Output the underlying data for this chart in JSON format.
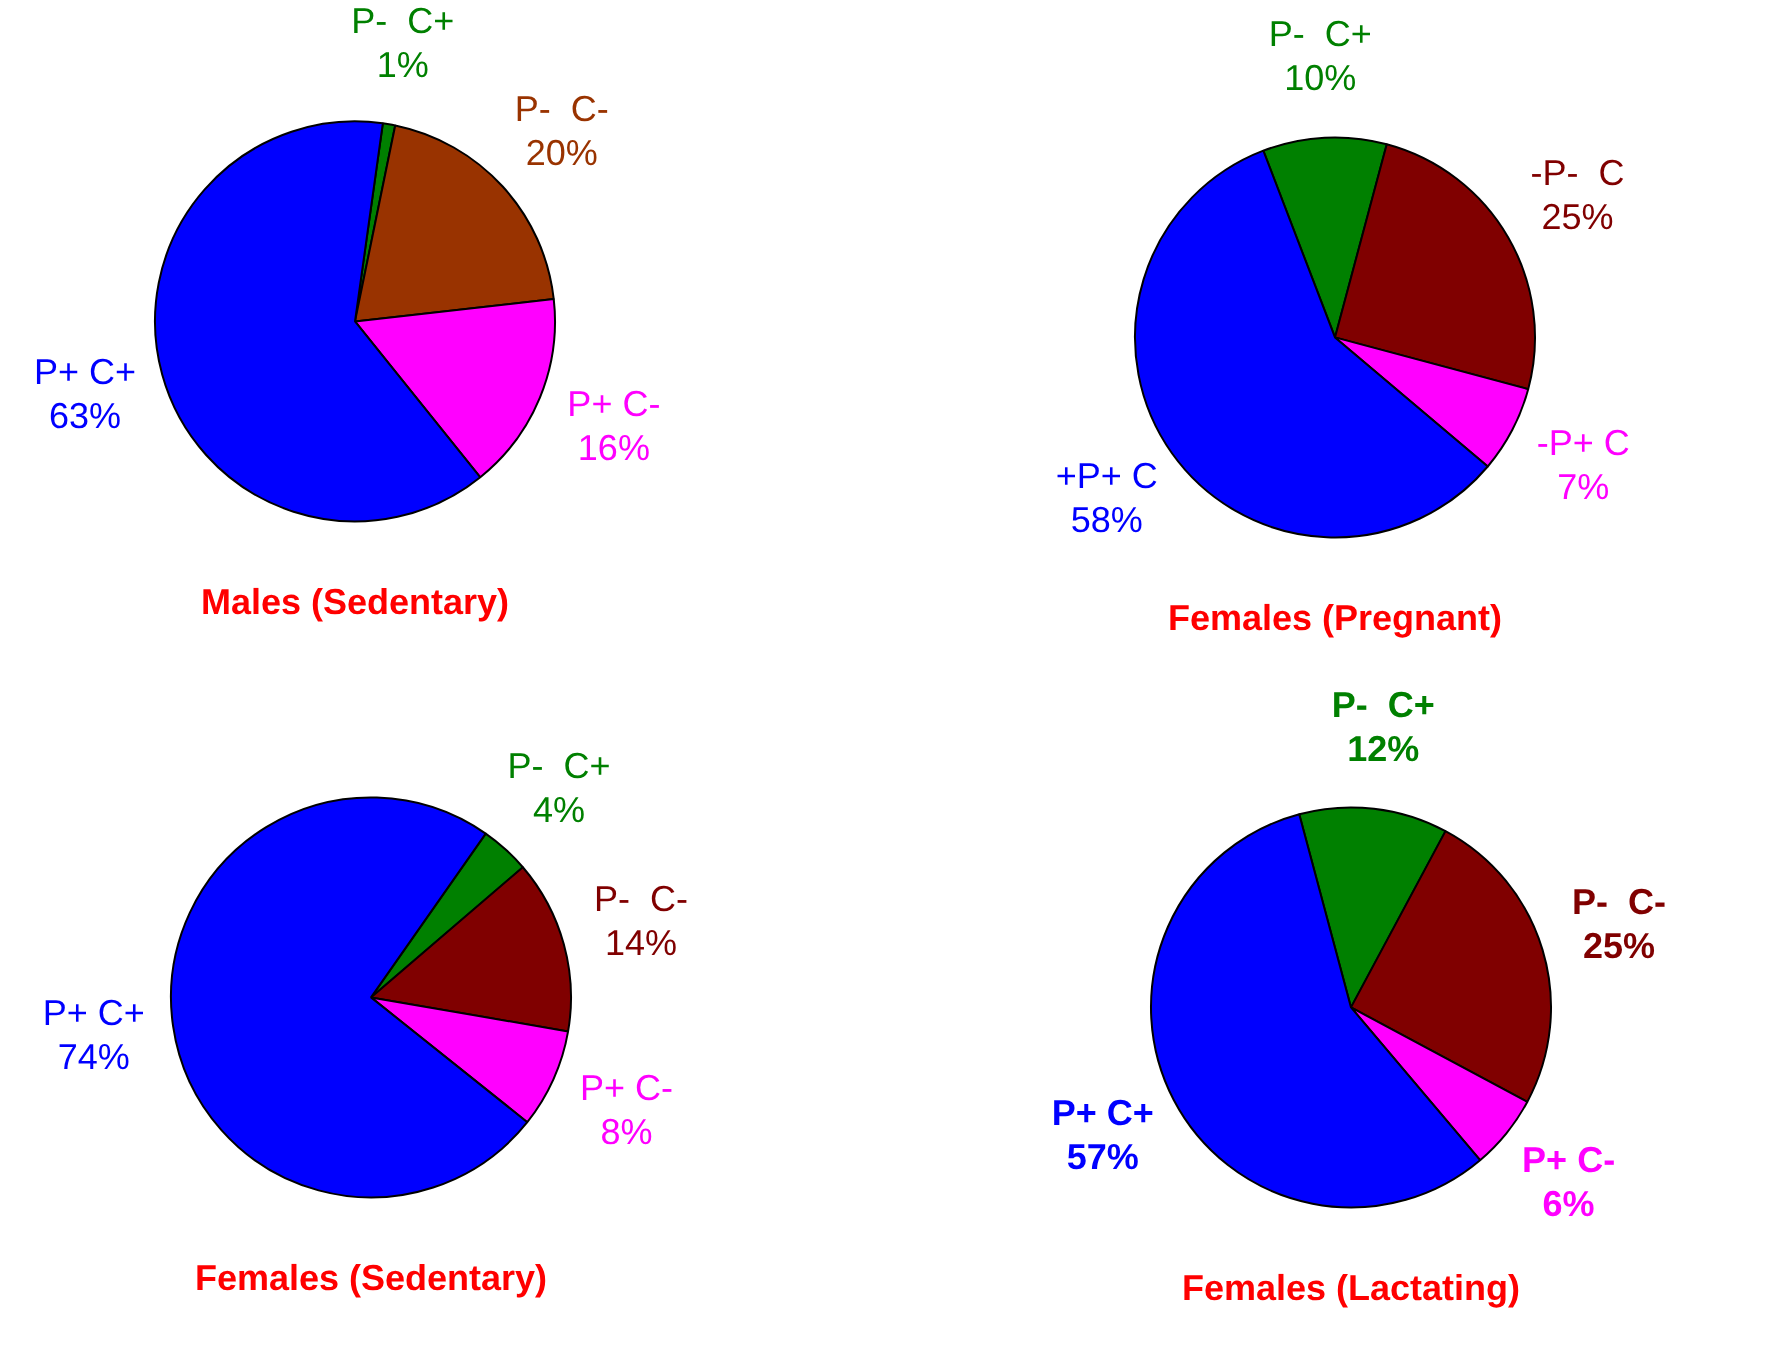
{
  "chart_data": [
    {
      "type": "pie",
      "title": "Males (Sedentary)",
      "categories": [
        "P-  C+",
        "P-  C-",
        "P+ C-",
        "P+ C+"
      ],
      "values": [
        1,
        20,
        16,
        63
      ],
      "value_labels": [
        "1%",
        "20%",
        "16%",
        "63%"
      ],
      "colors": [
        "#008000",
        "#993300",
        "#ff00ff",
        "#0000ff"
      ],
      "legend": false
    },
    {
      "type": "pie",
      "title": "Females (Pregnant)",
      "categories": [
        "P-  C+",
        "-P-  C",
        "-P+ C",
        "+P+ C"
      ],
      "values": [
        10,
        25,
        7,
        58
      ],
      "value_labels": [
        "10%",
        "25%",
        "7%",
        "58%"
      ],
      "colors": [
        "#008000",
        "#800000",
        "#ff00ff",
        "#0000ff"
      ],
      "legend": false
    },
    {
      "type": "pie",
      "title": "Females (Sedentary)",
      "categories": [
        "P-  C+",
        "P-  C-",
        "P+ C-",
        "P+ C+"
      ],
      "values": [
        4,
        14,
        8,
        74
      ],
      "value_labels": [
        "4%",
        "14%",
        "8%",
        "74%"
      ],
      "colors": [
        "#008000",
        "#800000",
        "#ff00ff",
        "#0000ff"
      ],
      "legend": false
    },
    {
      "type": "pie",
      "title": "Females (Lactating)",
      "categories": [
        "P-  C+",
        "P-  C-",
        "P+ C-",
        "P+ C+"
      ],
      "values": [
        12,
        25,
        6,
        57
      ],
      "value_labels": [
        "12%",
        "25%",
        "6%",
        "57%"
      ],
      "colors": [
        "#008000",
        "#800000",
        "#ff00ff",
        "#0000ff"
      ],
      "legend": false
    }
  ]
}
